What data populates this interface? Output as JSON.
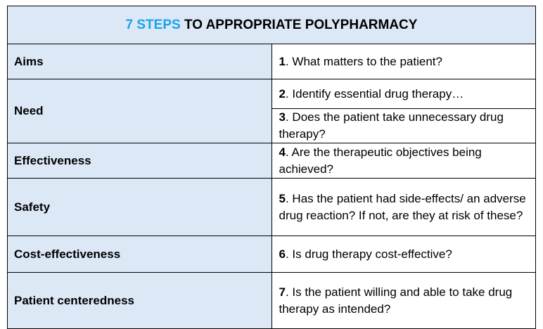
{
  "title": {
    "accent": "7 STEPS",
    "rest": " TO APPROPRIATE POLYPHARMACY",
    "accent_color": "#1aa3e8"
  },
  "header_bg": "#dce8f6",
  "rows": [
    {
      "label": "Aims",
      "steps": [
        {
          "num": "1",
          "text": ". What matters to the patient?"
        }
      ]
    },
    {
      "label": "Need",
      "steps": [
        {
          "num": "2",
          "text": ". Identify essential drug therapy…"
        },
        {
          "num": "3",
          "text": ". Does the patient take unnecessary drug therapy?"
        }
      ]
    },
    {
      "label": "Effectiveness",
      "steps": [
        {
          "num": "4",
          "text": ". Are the therapeutic objectives being achieved?"
        }
      ]
    },
    {
      "label": "Safety",
      "steps": [
        {
          "num": "5",
          "text": ". Has the patient had side-effects/ an adverse drug reaction? If not, are they at risk of these?"
        }
      ]
    },
    {
      "label": "Cost-effectiveness",
      "steps": [
        {
          "num": "6",
          "text": ". Is drug therapy cost-effective?"
        }
      ]
    },
    {
      "label": "Patient centeredness",
      "steps": [
        {
          "num": "7",
          "text": ". Is the patient willing and able to take drug therapy as intended?"
        }
      ]
    }
  ]
}
